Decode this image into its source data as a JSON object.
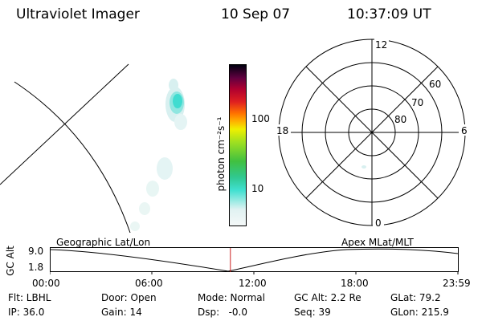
{
  "header": {
    "instrument": "Ultraviolet Imager",
    "date": "10 Sep 07",
    "time": "10:37:09 UT"
  },
  "colorbar": {
    "label": "photon cm⁻²s⁻¹",
    "ticks": [
      "100",
      "10"
    ]
  },
  "polar_plot": {
    "mlt_labels": {
      "top": "12",
      "bottom": "0",
      "left": "18",
      "right": "6"
    },
    "lat_labels": [
      "60",
      "70",
      "80"
    ]
  },
  "timeline": {
    "ylabel": "GC Alt",
    "y_top": "9.0",
    "y_bottom": "1.8",
    "left_title": "Geographic Lat/Lon",
    "right_title": "Apex MLat/MLT",
    "ticks": [
      "00:00",
      "06:00",
      "12:00",
      "18:00",
      "23:59"
    ],
    "marker_hour": 10.62
  },
  "info": {
    "row1": [
      "Flt: LBHL",
      "Door: Open",
      "Mode: Normal",
      "GC Alt: 2.2 Re",
      "GLat: 79.2"
    ],
    "row2": [
      "IP: 36.0",
      "Gain: 14",
      "Dsp:   -0.0",
      "Seq: 39",
      "GLon: 215.9"
    ]
  },
  "colors": {
    "marker": "#cc2222",
    "colorbar_stops": [
      "#e8f4f4",
      "#40e0d0",
      "#40c060",
      "#a0e020",
      "#f0f000",
      "#ff9000",
      "#e02020",
      "#a00040",
      "#400040",
      "#000010"
    ]
  }
}
